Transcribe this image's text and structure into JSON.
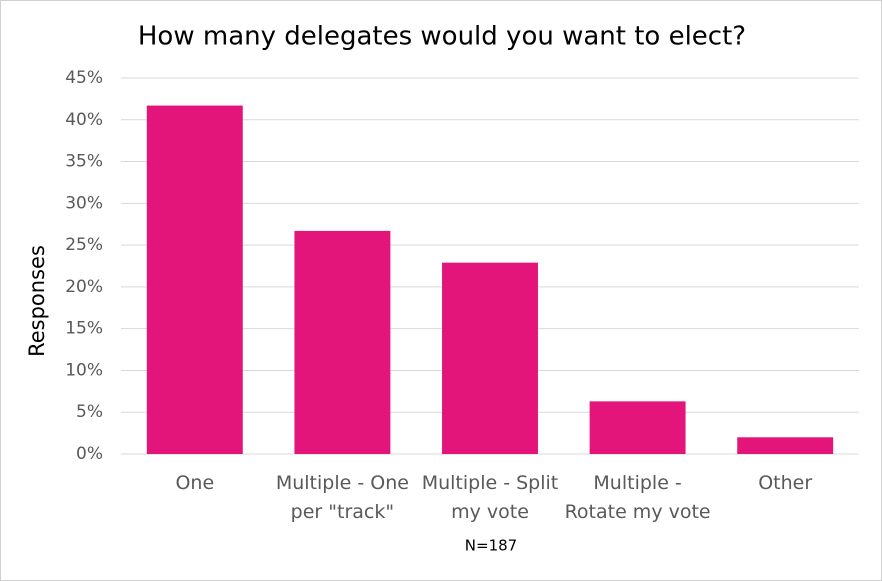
{
  "chart_data": {
    "type": "bar",
    "title": "How many delegates would you want to elect?",
    "y_label": "Responses",
    "annotation": "N=187",
    "categories": [
      "One",
      "Multiple - One per \"track\"",
      "Multiple - Split my vote",
      "Multiple - Rotate my vote",
      "Other"
    ],
    "values": [
      41.7,
      26.7,
      22.9,
      6.3,
      2.0
    ],
    "color": "#e3157b",
    "ylim": [
      0,
      45
    ],
    "yticks": [
      {
        "value": 0,
        "label": "0%"
      },
      {
        "value": 5,
        "label": "5%"
      },
      {
        "value": 10,
        "label": "10%"
      },
      {
        "value": 15,
        "label": "15%"
      },
      {
        "value": 20,
        "label": "20%"
      },
      {
        "value": 25,
        "label": "25%"
      },
      {
        "value": 30,
        "label": "30%"
      },
      {
        "value": 35,
        "label": "35%"
      },
      {
        "value": 40,
        "label": "40%"
      },
      {
        "value": 45,
        "label": "45%"
      }
    ],
    "grid": true
  }
}
